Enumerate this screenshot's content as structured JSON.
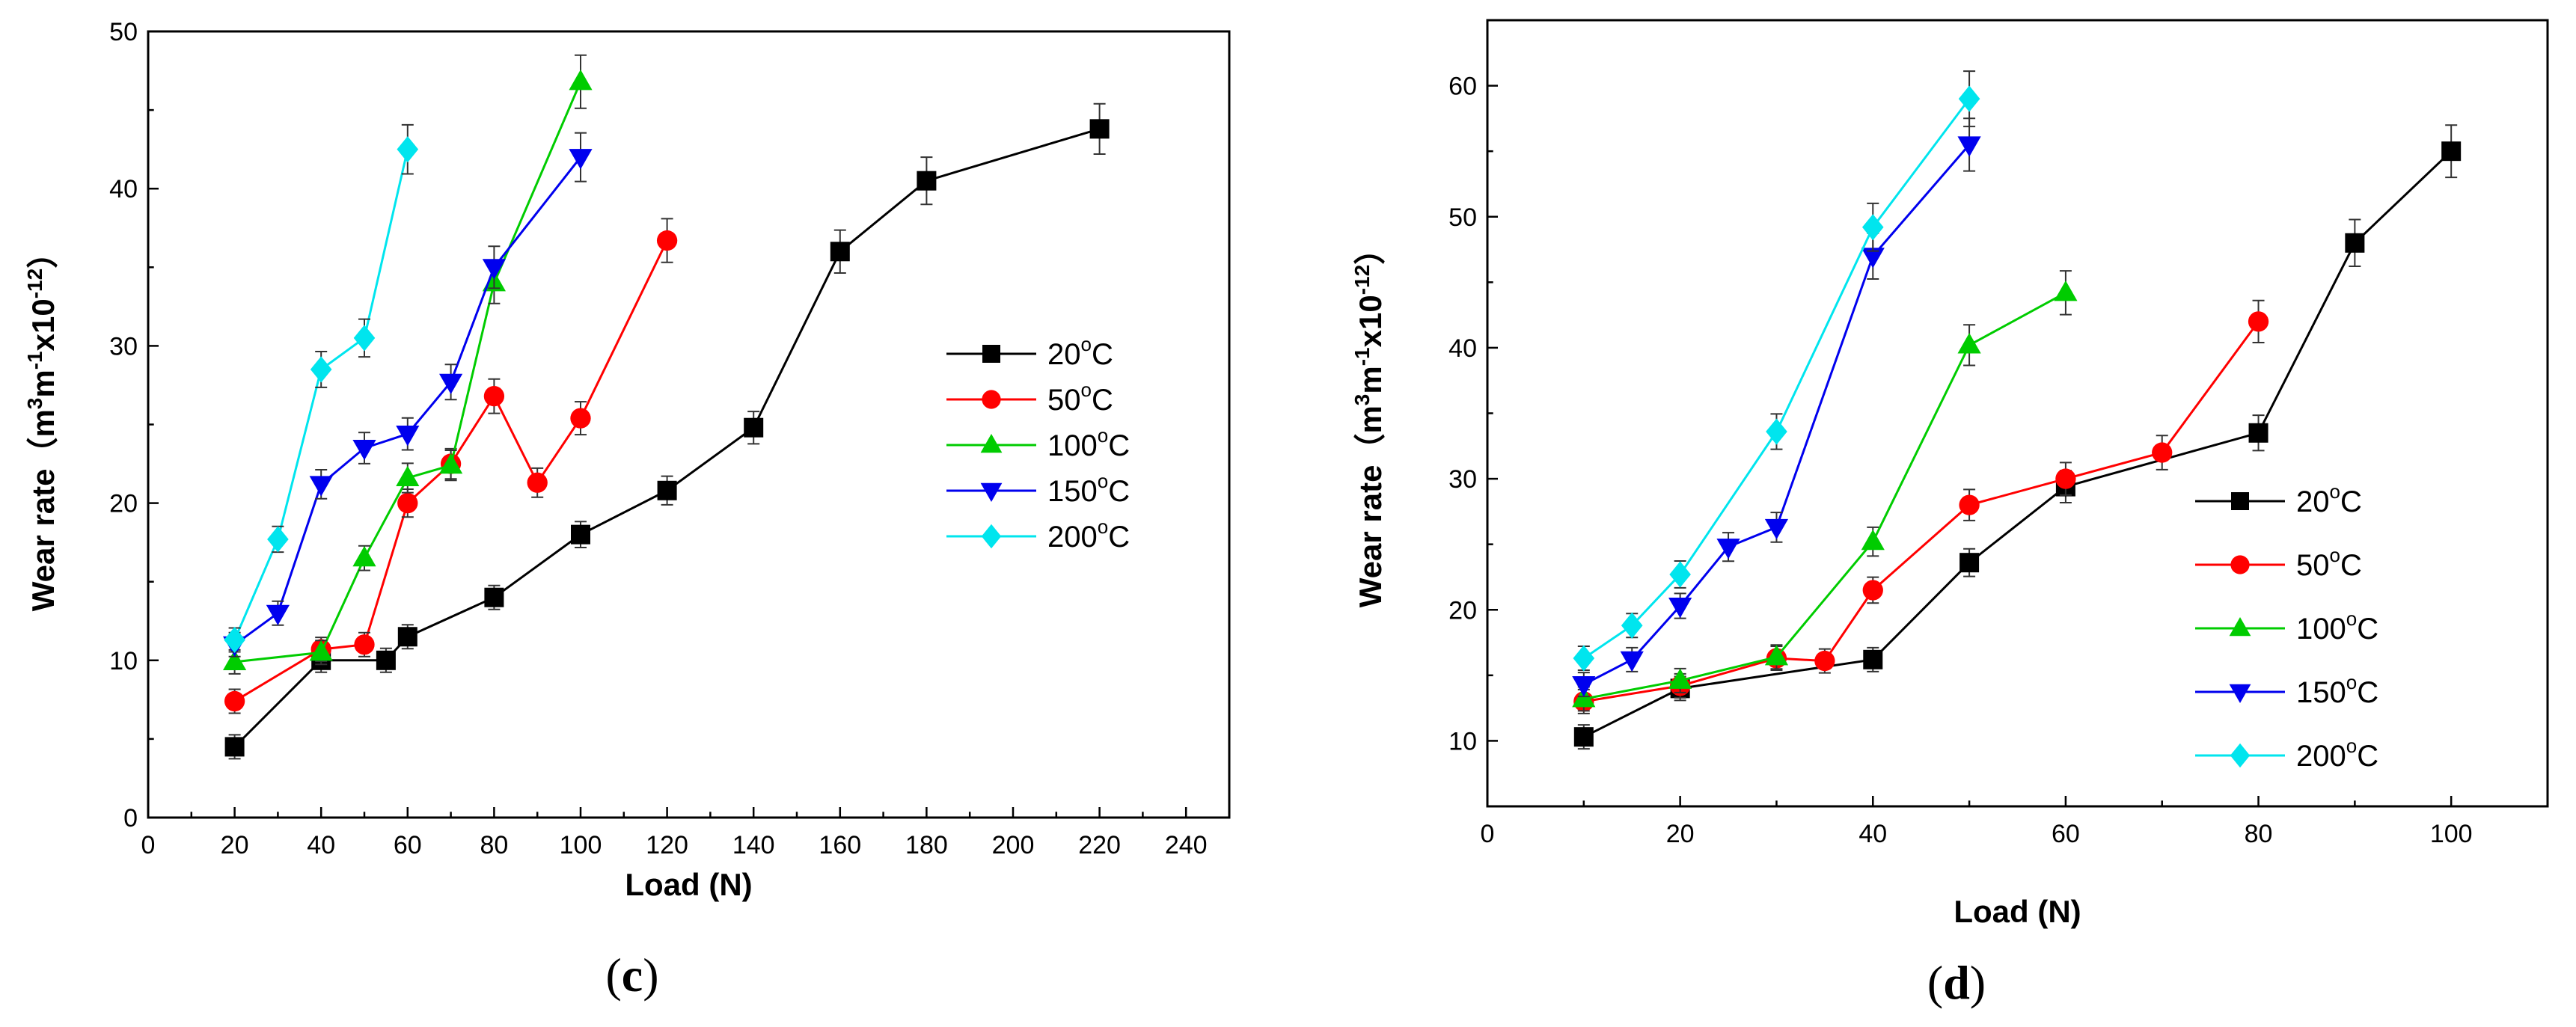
{
  "chart_data": [
    {
      "type": "line",
      "panel_label": "c",
      "xlabel": "Load (N)",
      "ylabel": "Wear rate（m³m⁻¹x10⁻¹²）",
      "ylabel_parts": {
        "prefix": "Wear rate（m",
        "sup1": "3",
        "mid1": "m",
        "sup2": "-1",
        "mid2": "x10",
        "sup3": "-12",
        "suffix": "）"
      },
      "xlim": [
        0,
        250
      ],
      "ylim": [
        0,
        50
      ],
      "xticks": [
        0,
        20,
        40,
        60,
        80,
        100,
        120,
        140,
        160,
        180,
        200,
        220,
        240
      ],
      "yticks": [
        0,
        10,
        20,
        30,
        40,
        50
      ],
      "legend_position": "right-middle",
      "series": [
        {
          "name": "20°C",
          "base": "20",
          "unit": "C",
          "color": "#000000",
          "marker": "square",
          "x": [
            20,
            40,
            55,
            60,
            80,
            100,
            120,
            140,
            160,
            180,
            220
          ],
          "y": [
            4.5,
            10.0,
            10.0,
            11.5,
            14.0,
            18.0,
            20.8,
            24.8,
            36.0,
            40.5,
            43.8
          ]
        },
        {
          "name": "50°C",
          "base": "50",
          "unit": "C",
          "color": "#ff0000",
          "marker": "circle",
          "x": [
            20,
            40,
            50,
            60,
            70,
            80,
            90,
            100,
            120
          ],
          "y": [
            7.4,
            10.7,
            11.0,
            20.0,
            22.5,
            26.8,
            21.3,
            25.4,
            36.7
          ]
        },
        {
          "name": "100°C",
          "base": "100",
          "unit": "C",
          "color": "#00cc00",
          "marker": "triangle-up",
          "x": [
            20,
            40,
            50,
            60,
            70,
            80,
            100
          ],
          "y": [
            9.9,
            10.5,
            16.5,
            21.6,
            22.4,
            34.0,
            46.8
          ]
        },
        {
          "name": "150°C",
          "base": "150",
          "unit": "C",
          "color": "#0000ee",
          "marker": "triangle-down",
          "x": [
            20,
            30,
            40,
            50,
            60,
            70,
            80,
            100
          ],
          "y": [
            11.0,
            13.0,
            21.2,
            23.5,
            24.4,
            27.7,
            35.0,
            42.0
          ]
        },
        {
          "name": "200°C",
          "base": "200",
          "unit": "C",
          "color": "#00e5ee",
          "marker": "diamond",
          "x": [
            20,
            30,
            40,
            50,
            60
          ],
          "y": [
            11.3,
            17.7,
            28.5,
            30.5,
            42.5
          ]
        }
      ]
    },
    {
      "type": "line",
      "panel_label": "d",
      "xlabel": "Load (N)",
      "ylabel": "Wear rate（m³m⁻¹x10⁻¹²）",
      "ylabel_parts": {
        "prefix": "Wear rate（m",
        "sup1": "3",
        "mid1": "m",
        "sup2": "-1",
        "mid2": "x10",
        "sup3": "-12",
        "suffix": "）"
      },
      "xlim": [
        0,
        110
      ],
      "ylim": [
        5,
        65
      ],
      "xticks": [
        0,
        20,
        40,
        60,
        80,
        100
      ],
      "yticks": [
        10,
        20,
        30,
        40,
        50,
        60
      ],
      "legend_position": "right-middle",
      "series": [
        {
          "name": "20°C",
          "base": "20",
          "unit": "C",
          "color": "#000000",
          "marker": "square",
          "x": [
            10,
            20,
            40,
            50,
            60,
            80,
            90,
            100
          ],
          "y": [
            10.3,
            14.0,
            16.2,
            23.6,
            29.4,
            33.5,
            48.0,
            55.0
          ]
        },
        {
          "name": "50°C",
          "base": "50",
          "unit": "C",
          "color": "#ff0000",
          "marker": "circle",
          "x": [
            10,
            20,
            30,
            35,
            40,
            50,
            60,
            70,
            80
          ],
          "y": [
            13.0,
            14.2,
            16.3,
            16.1,
            21.5,
            28.0,
            30.0,
            32.0,
            42.0
          ]
        },
        {
          "name": "100°C",
          "base": "100",
          "unit": "C",
          "color": "#00cc00",
          "marker": "triangle-up",
          "x": [
            10,
            20,
            30,
            40,
            50,
            60
          ],
          "y": [
            13.2,
            14.6,
            16.4,
            25.2,
            40.2,
            44.2
          ]
        },
        {
          "name": "150°C",
          "base": "150",
          "unit": "C",
          "color": "#0000ee",
          "marker": "triangle-down",
          "x": [
            10,
            15,
            20,
            25,
            30,
            40,
            50
          ],
          "y": [
            14.3,
            16.2,
            20.3,
            24.8,
            26.3,
            47.0,
            55.5
          ]
        },
        {
          "name": "200°C",
          "base": "200",
          "unit": "C",
          "color": "#00e5ee",
          "marker": "diamond",
          "x": [
            10,
            15,
            20,
            30,
            40,
            50
          ],
          "y": [
            16.3,
            18.8,
            22.7,
            33.6,
            49.2,
            59.0
          ]
        }
      ]
    }
  ]
}
